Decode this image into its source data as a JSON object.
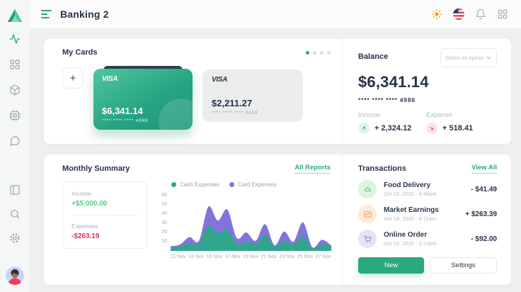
{
  "app": {
    "title": "Banking 2"
  },
  "header": {
    "icons": [
      "menu",
      "theme-sun",
      "language-flag-us",
      "notifications-bell",
      "apps-grid"
    ]
  },
  "sidebar": {
    "icons": [
      "activity",
      "dashboard-grid",
      "cube",
      "cpu",
      "chat",
      "layout-panel",
      "search",
      "settings-gear",
      "user-avatar"
    ],
    "active": "activity"
  },
  "my_cards": {
    "title": "My Cards",
    "dots": 4,
    "active_dot": 0,
    "add_label": "+",
    "cards": [
      {
        "brand": "VISA",
        "balance": "$6,341.14",
        "number": "**** **** **** 4986",
        "variant": "green"
      },
      {
        "brand": "VISA",
        "balance": "$2,211.27",
        "number": "**** **** **** 3619",
        "variant": "gray"
      }
    ]
  },
  "balance": {
    "title": "Balance",
    "select_label": "Select an option",
    "amount": "$6,341.14",
    "card_number": "**** **** **** 4986",
    "income_label": "Income",
    "income_value": "+ 2,324.12",
    "expense_label": "Expense",
    "expense_value": "+ 518.41"
  },
  "monthly_summary": {
    "title": "Monthly Summary",
    "link": "All Reports",
    "income_label": "Income",
    "income_value": "+$5,000.00",
    "expenses_label": "Expenses",
    "expenses_value": "-$263.19"
  },
  "chart_data": {
    "type": "area",
    "x_days": [
      11,
      12,
      13,
      14,
      15,
      16,
      17,
      18,
      19,
      20,
      21,
      22,
      23,
      24,
      25,
      26,
      27,
      28
    ],
    "series": [
      {
        "name": "Cash Expenses",
        "color": "#31a68c",
        "values": [
          4,
          5,
          8,
          8,
          27,
          19,
          23,
          8,
          10,
          8,
          17,
          5,
          11,
          7,
          16,
          3,
          7,
          5
        ]
      },
      {
        "name": "Card Expenses",
        "color": "#8175db",
        "values": [
          5,
          7,
          15,
          11,
          48,
          33,
          45,
          14,
          20,
          11,
          29,
          6,
          21,
          10,
          31,
          4,
          12,
          6
        ]
      }
    ],
    "xticks": [
      "11 Nov",
      "13 Nov",
      "15 Nov",
      "17 Nov",
      "19 Nov",
      "21 Nov",
      "23 Nov",
      "25 Nov",
      "27 Nov"
    ],
    "yticks": [
      60,
      50,
      40,
      30,
      20,
      10
    ],
    "ylim": [
      0,
      65
    ],
    "grid": false,
    "legend_position": "top"
  },
  "transactions": {
    "title": "Transactions",
    "link": "View All",
    "items": [
      {
        "icon": "food-cloche",
        "title": "Food Delivery",
        "date": "Oct 23, 2020 - 8:46pm",
        "amount": "- $41.49"
      },
      {
        "icon": "market-chart",
        "title": "Market Earnings",
        "date": "Oct 18, 2020 - 9:11am",
        "amount": "+ $263.39"
      },
      {
        "icon": "shopping-cart",
        "title": "Online Order",
        "date": "Oct 16, 2020 - 2:13pm",
        "amount": "- $92.00"
      }
    ],
    "new_label": "New",
    "settings_label": "Settings"
  },
  "colors": {
    "accent": "#2aa87f",
    "navy": "#26334a",
    "red": "#e0365f",
    "positive": "#5dc88b",
    "chart_cash": "#31a68c",
    "chart_card": "#8175db"
  }
}
